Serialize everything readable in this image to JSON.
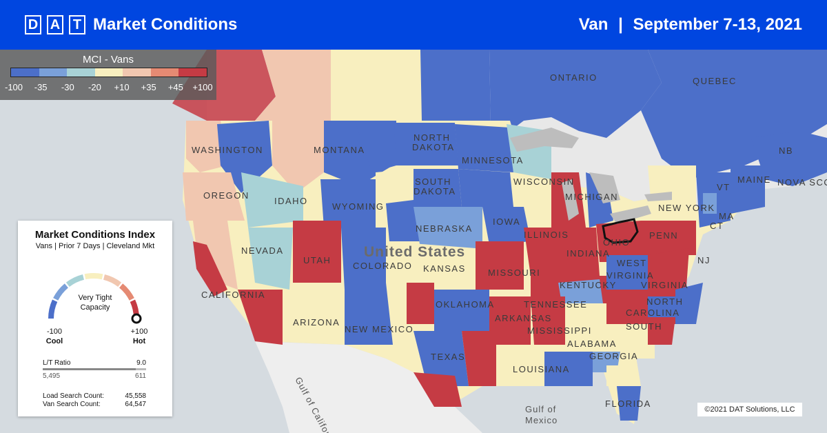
{
  "header": {
    "logo_letters": [
      "D",
      "A",
      "T"
    ],
    "title": "Market Conditions",
    "equipment": "Van",
    "separator": "|",
    "date_range": "September 7-13, 2021"
  },
  "mci_legend": {
    "title": "MCI - Vans",
    "colors": [
      "#4c6fc9",
      "#7aa0d9",
      "#a8d2d6",
      "#f8efbf",
      "#f1c7b0",
      "#e58a73",
      "#c53b44"
    ],
    "ticks": [
      "-100",
      "-35",
      "-30",
      "-20",
      "+10",
      "+35",
      "+45",
      "+100"
    ]
  },
  "panel": {
    "title": "Market Conditions Index",
    "subtitle": "Vans | Prior 7 Days | Cleveland Mkt",
    "gauge_label_line1": "Very Tight",
    "gauge_label_line2": "Capacity",
    "gauge_value": 100,
    "min_label": "-100",
    "max_label": "+100",
    "cool_label": "Cool",
    "hot_label": "Hot",
    "lt_ratio_label": "L/T Ratio",
    "lt_ratio_value": "9.0",
    "loads": "5,495",
    "trucks": "611",
    "load_search_label": "Load Search Count:",
    "load_search_value": "45,558",
    "van_search_label": "Van Search Count:",
    "van_search_value": "64,547"
  },
  "map_labels": {
    "ontario": "ONTARIO",
    "quebec": "QUEBEC",
    "washington": "WASHINGTON",
    "montana": "MONTANA",
    "north_dakota_1": "NORTH",
    "north_dakota_2": "DAKOTA",
    "minnesota": "MINNESOTA",
    "oregon": "OREGON",
    "idaho": "IDAHO",
    "south_dakota_1": "SOUTH",
    "south_dakota_2": "DAKOTA",
    "wisconsin": "WISCONSIN",
    "michigan": "MICHIGAN",
    "new_york": "NEW YORK",
    "maine": "MAINE",
    "nb": "NB",
    "nova_scotia": "NOVA SCO",
    "wyoming": "WYOMING",
    "nebraska": "NEBRASKA",
    "iowa": "IOWA",
    "illinois": "ILLINOIS",
    "ohio": "OHIO",
    "penn": "PENN",
    "nj": "NJ",
    "ct": "CT",
    "ma": "MA",
    "vt": "VT",
    "nevada": "NEVADA",
    "utah": "UTAH",
    "colorado": "COLORADO",
    "united_states": "United States",
    "kansas": "KANSAS",
    "missouri": "MISSOURI",
    "indiana": "INDIANA",
    "west_virginia_1": "WEST",
    "west_virginia_2": "VIRGINIA",
    "virginia": "VIRGINIA",
    "kentucky": "KENTUCKY",
    "california": "CALIFORNIA",
    "oklahoma": "OKLAHOMA",
    "tennessee": "TENNESSEE",
    "north_carolina_1": "NORTH",
    "north_carolina_2": "CAROLINA",
    "arkansas": "ARKANSAS",
    "south_carolina": "SOUTH",
    "arizona": "ARIZONA",
    "new_mexico": "NEW MEXICO",
    "mississippi": "MISSISSIPPI",
    "alabama": "ALABAMA",
    "georgia": "GEORGIA",
    "texas": "TEXAS",
    "louisiana": "LOUISIANA",
    "florida": "FLORIDA",
    "gulf_california": "Gulf of California",
    "gulf_mexico_1": "Gulf of",
    "gulf_mexico_2": "Mexico"
  },
  "copyright": "©2021 DAT Solutions, LLC"
}
